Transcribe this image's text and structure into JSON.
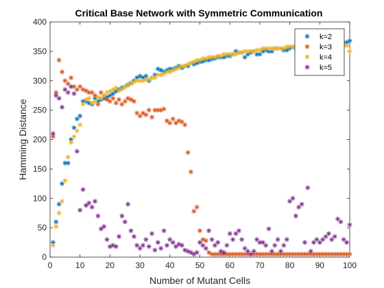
{
  "chart_data": {
    "type": "scatter",
    "title": "Critical Base Network with Symmetric Communication",
    "xlabel": "Number of Mutant Cells",
    "ylabel": "Hamming Distance",
    "xlim": [
      0,
      100
    ],
    "ylim": [
      0,
      400
    ],
    "xticks": [
      0,
      10,
      20,
      30,
      40,
      50,
      60,
      70,
      80,
      90,
      100
    ],
    "yticks": [
      0,
      50,
      100,
      150,
      200,
      250,
      300,
      350,
      400
    ],
    "grid": false,
    "legend_position": "top-right",
    "marker": "asterisk",
    "series": [
      {
        "name": "k=2",
        "color": "#0072BD",
        "x": [
          1,
          2,
          3,
          4,
          5,
          6,
          7,
          8,
          9,
          10,
          11,
          12,
          13,
          14,
          15,
          16,
          17,
          18,
          19,
          20,
          21,
          22,
          23,
          24,
          25,
          26,
          27,
          28,
          29,
          30,
          31,
          32,
          33,
          34,
          35,
          36,
          37,
          38,
          39,
          40,
          41,
          42,
          43,
          44,
          45,
          46,
          47,
          48,
          49,
          50,
          51,
          52,
          53,
          54,
          55,
          56,
          57,
          58,
          59,
          60,
          61,
          62,
          63,
          64,
          65,
          66,
          67,
          68,
          69,
          70,
          71,
          72,
          73,
          74,
          75,
          76,
          77,
          78,
          79,
          80,
          81,
          82,
          83,
          84,
          85,
          86,
          87,
          88,
          89,
          90,
          91,
          92,
          93,
          94,
          95,
          96,
          97,
          98,
          99,
          100
        ],
        "y": [
          25,
          60,
          90,
          125,
          160,
          160,
          200,
          220,
          235,
          240,
          265,
          265,
          262,
          260,
          270,
          265,
          268,
          270,
          272,
          275,
          278,
          282,
          285,
          288,
          290,
          293,
          296,
          300,
          305,
          308,
          305,
          308,
          300,
          305,
          310,
          320,
          318,
          315,
          318,
          320,
          320,
          322,
          325,
          322,
          325,
          325,
          330,
          328,
          330,
          332,
          333,
          335,
          335,
          337,
          338,
          340,
          340,
          340,
          342,
          342,
          345,
          350,
          348,
          348,
          340,
          345,
          348,
          350,
          345,
          345,
          350,
          352,
          350,
          350,
          355,
          355,
          355,
          352,
          352,
          355,
          358,
          355,
          360,
          360,
          360,
          360,
          360,
          360,
          360,
          362,
          362,
          362,
          362,
          365,
          365,
          365,
          365,
          365,
          365,
          368
        ]
      },
      {
        "name": "k=3",
        "color": "#D95319",
        "x": [
          1,
          2,
          3,
          4,
          5,
          6,
          7,
          8,
          9,
          10,
          11,
          12,
          13,
          14,
          15,
          16,
          17,
          18,
          19,
          20,
          21,
          22,
          23,
          24,
          25,
          26,
          27,
          28,
          29,
          30,
          31,
          32,
          33,
          34,
          35,
          36,
          37,
          38,
          39,
          40,
          41,
          42,
          43,
          44,
          45,
          46,
          47,
          48,
          49,
          50,
          51,
          52,
          53,
          54,
          55,
          56,
          57,
          58,
          59,
          60,
          61,
          62,
          63,
          64,
          65,
          66,
          67,
          68,
          69,
          70,
          71,
          72,
          73,
          74,
          75,
          76,
          77,
          78,
          79,
          80,
          81,
          82,
          83,
          84,
          85,
          86,
          87,
          88,
          89,
          90,
          91,
          92,
          93,
          94,
          95,
          96,
          97,
          98,
          99,
          100
        ],
        "y": [
          205,
          280,
          335,
          315,
          300,
          295,
          305,
          290,
          285,
          290,
          285,
          283,
          280,
          280,
          275,
          260,
          280,
          275,
          268,
          265,
          270,
          262,
          268,
          260,
          265,
          270,
          268,
          265,
          245,
          240,
          245,
          242,
          250,
          238,
          250,
          250,
          250,
          252,
          232,
          228,
          235,
          228,
          232,
          230,
          225,
          178,
          145,
          78,
          85,
          45,
          30,
          28,
          8,
          5,
          5,
          5,
          5,
          5,
          5,
          5,
          5,
          5,
          5,
          5,
          5,
          5,
          5,
          5,
          5,
          5,
          5,
          5,
          5,
          5,
          5,
          5,
          5,
          5,
          5,
          5,
          5,
          5,
          5,
          5,
          5,
          5,
          5,
          5,
          5,
          5,
          5,
          5,
          5,
          5,
          5,
          5,
          5,
          5,
          5,
          5
        ]
      },
      {
        "name": "k=4",
        "color": "#EDB120",
        "x": [
          1,
          2,
          3,
          4,
          5,
          6,
          7,
          8,
          9,
          10,
          11,
          12,
          13,
          14,
          15,
          16,
          17,
          18,
          19,
          20,
          21,
          22,
          23,
          24,
          25,
          26,
          27,
          28,
          29,
          30,
          31,
          32,
          33,
          34,
          35,
          36,
          37,
          38,
          39,
          40,
          41,
          42,
          43,
          44,
          45,
          46,
          47,
          48,
          49,
          50,
          51,
          52,
          53,
          54,
          55,
          56,
          57,
          58,
          59,
          60,
          61,
          62,
          63,
          64,
          65,
          66,
          67,
          68,
          69,
          70,
          71,
          72,
          73,
          74,
          75,
          76,
          77,
          78,
          79,
          80,
          81,
          82,
          83,
          84,
          85,
          86,
          87,
          88,
          89,
          90,
          91,
          92,
          93,
          94,
          95,
          96,
          97,
          98,
          99,
          100
        ],
        "y": [
          20,
          52,
          75,
          95,
          130,
          170,
          195,
          205,
          215,
          225,
          260,
          268,
          270,
          262,
          265,
          272,
          270,
          275,
          280,
          282,
          285,
          288,
          283,
          286,
          290,
          292,
          295,
          298,
          300,
          300,
          300,
          302,
          302,
          305,
          305,
          310,
          310,
          312,
          315,
          315,
          318,
          320,
          322,
          325,
          325,
          328,
          330,
          332,
          335,
          335,
          338,
          338,
          340,
          340,
          340,
          342,
          342,
          345,
          345,
          345,
          345,
          345,
          348,
          348,
          350,
          350,
          350,
          350,
          352,
          352,
          355,
          355,
          355,
          355,
          355,
          355,
          355,
          355,
          358,
          358,
          358,
          358,
          358,
          360,
          360,
          360,
          360,
          360,
          360,
          360,
          360,
          360,
          360,
          360,
          360,
          360,
          360,
          360,
          360,
          350
        ]
      },
      {
        "name": "k=5",
        "color": "#7E2F8E",
        "x": [
          1,
          2,
          3,
          4,
          5,
          6,
          7,
          8,
          9,
          10,
          11,
          12,
          13,
          14,
          15,
          16,
          17,
          18,
          19,
          20,
          21,
          22,
          23,
          24,
          25,
          26,
          27,
          28,
          29,
          30,
          31,
          32,
          33,
          34,
          35,
          36,
          37,
          38,
          39,
          40,
          41,
          42,
          43,
          44,
          45,
          46,
          47,
          48,
          49,
          50,
          51,
          52,
          53,
          54,
          55,
          56,
          57,
          58,
          59,
          60,
          61,
          62,
          63,
          64,
          65,
          66,
          67,
          68,
          69,
          70,
          71,
          72,
          73,
          74,
          75,
          76,
          77,
          78,
          79,
          80,
          81,
          82,
          83,
          84,
          85,
          86,
          87,
          88,
          89,
          90,
          91,
          92,
          93,
          94,
          95,
          96,
          97,
          98,
          99,
          100
        ],
        "y": [
          210,
          275,
          270,
          255,
          285,
          280,
          290,
          278,
          180,
          80,
          115,
          88,
          92,
          85,
          95,
          70,
          48,
          52,
          30,
          18,
          20,
          18,
          35,
          70,
          60,
          90,
          45,
          35,
          20,
          15,
          20,
          30,
          18,
          40,
          12,
          25,
          15,
          45,
          20,
          30,
          25,
          18,
          22,
          20,
          12,
          10,
          8,
          5,
          8,
          25,
          20,
          15,
          45,
          30,
          20,
          25,
          10,
          8,
          20,
          40,
          30,
          40,
          45,
          30,
          15,
          10,
          5,
          10,
          30,
          25,
          25,
          20,
          48,
          10,
          20,
          30,
          10,
          20,
          30,
          95,
          100,
          70,
          85,
          90,
          25,
          118,
          10,
          25,
          30,
          25,
          30,
          35,
          40,
          30,
          35,
          65,
          60,
          30,
          25,
          55
        ]
      }
    ]
  }
}
